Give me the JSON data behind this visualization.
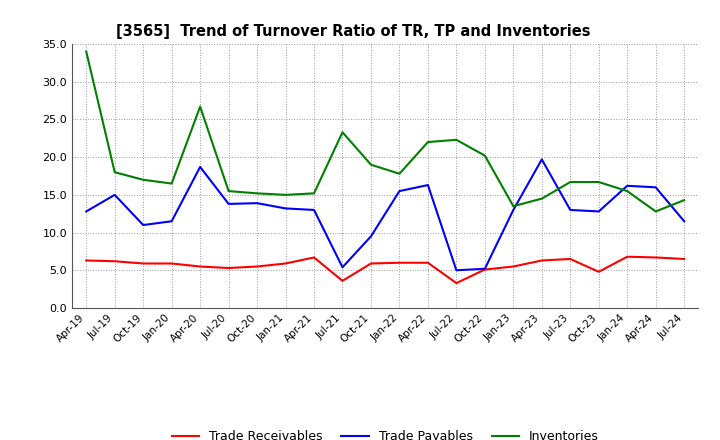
{
  "title": "[3565]  Trend of Turnover Ratio of TR, TP and Inventories",
  "x_labels": [
    "Apr-19",
    "Jul-19",
    "Oct-19",
    "Jan-20",
    "Apr-20",
    "Jul-20",
    "Oct-20",
    "Jan-21",
    "Apr-21",
    "Jul-21",
    "Oct-21",
    "Jan-22",
    "Apr-22",
    "Jul-22",
    "Oct-22",
    "Jan-23",
    "Apr-23",
    "Jul-23",
    "Oct-23",
    "Jan-24",
    "Apr-24",
    "Jul-24"
  ],
  "trade_receivables": [
    6.3,
    6.2,
    5.9,
    5.9,
    5.5,
    5.3,
    5.5,
    5.9,
    6.7,
    3.6,
    5.9,
    6.0,
    6.0,
    3.3,
    5.1,
    5.5,
    6.3,
    6.5,
    4.8,
    6.8,
    6.7,
    6.5
  ],
  "trade_payables": [
    12.8,
    15.0,
    11.0,
    11.5,
    18.7,
    13.8,
    13.9,
    13.2,
    13.0,
    5.4,
    9.5,
    15.5,
    16.3,
    5.0,
    5.2,
    13.0,
    19.7,
    13.0,
    12.8,
    16.2,
    16.0,
    11.5
  ],
  "inventories": [
    34.0,
    18.0,
    17.0,
    16.5,
    26.7,
    15.5,
    15.2,
    15.0,
    15.2,
    23.3,
    19.0,
    17.8,
    22.0,
    22.3,
    20.2,
    13.5,
    14.5,
    16.7,
    16.7,
    15.5,
    12.8,
    14.3
  ],
  "ylim": [
    0.0,
    35.0
  ],
  "yticks": [
    0.0,
    5.0,
    10.0,
    15.0,
    20.0,
    25.0,
    30.0,
    35.0
  ],
  "color_tr": "#ff0000",
  "color_tp": "#0000ff",
  "color_inv": "#008000",
  "legend_tr": "Trade Receivables",
  "legend_tp": "Trade Payables",
  "legend_inv": "Inventories",
  "bg_color": "#ffffff",
  "grid_color": "#999999"
}
